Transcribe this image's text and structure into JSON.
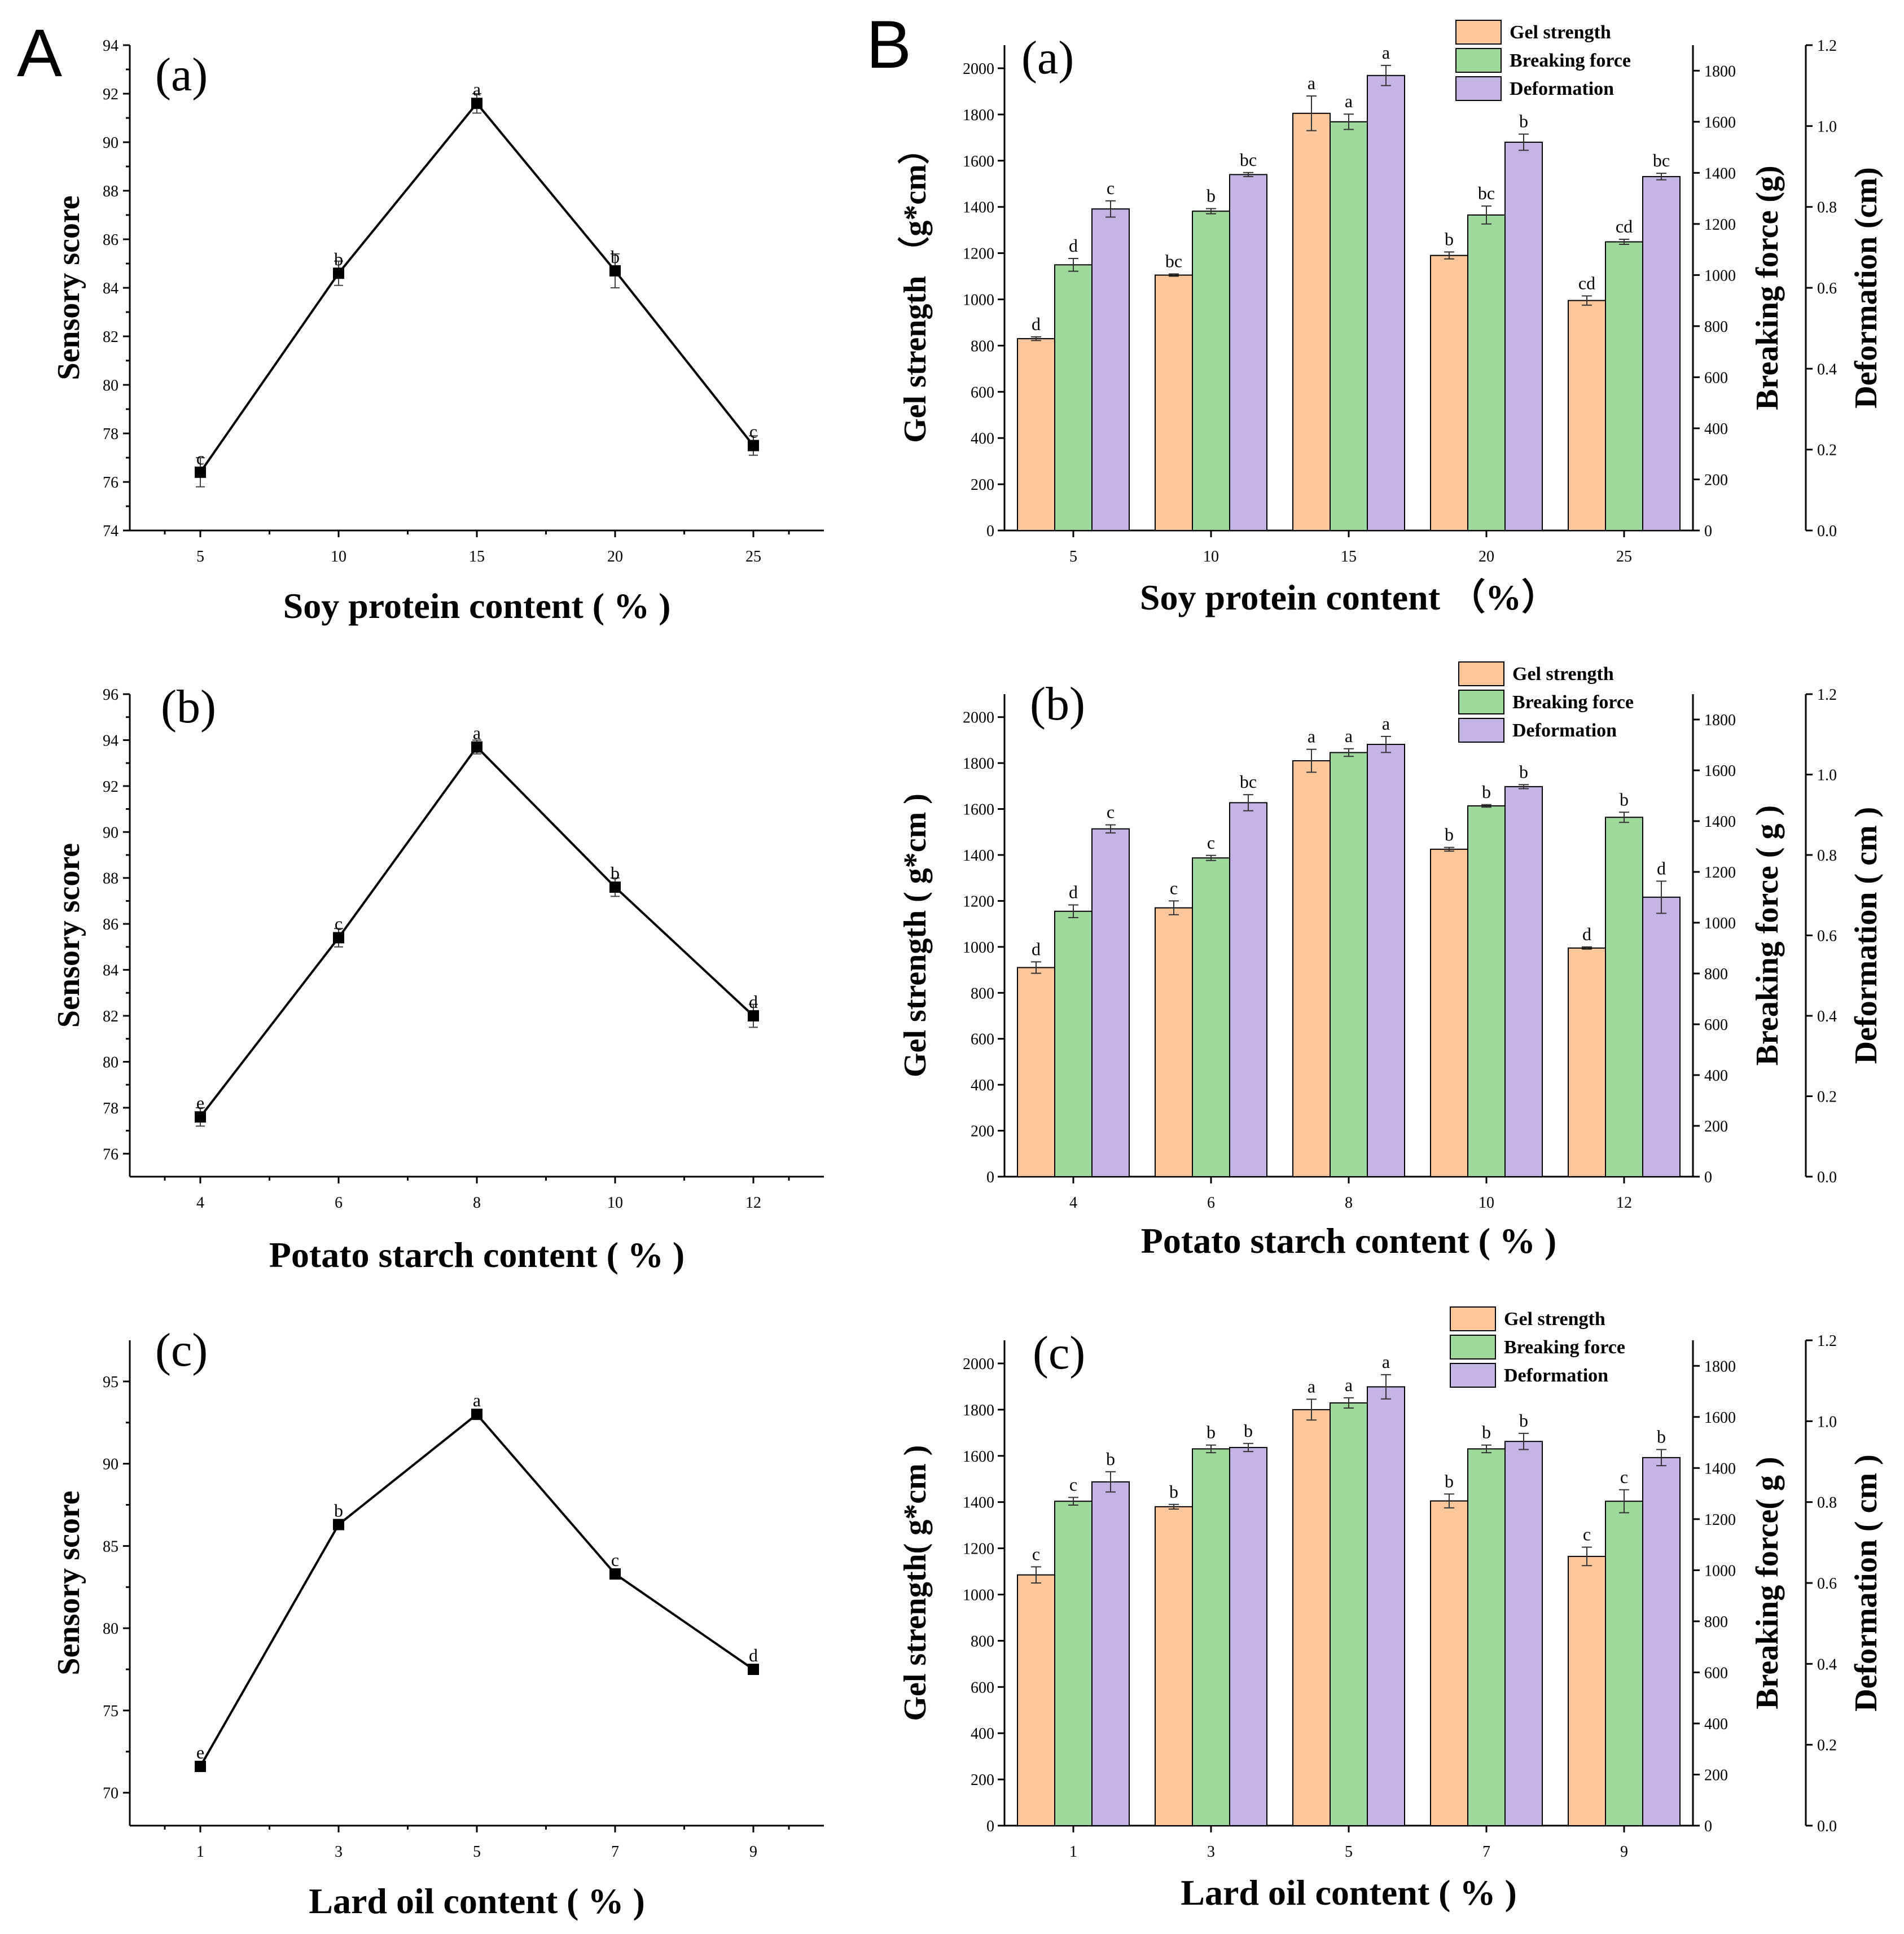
{
  "figure": {
    "label_a": "A",
    "label_b": "B"
  },
  "colors": {
    "gel": "#FDC69B",
    "break": "#9ED89B",
    "deform": "#C4B4E6",
    "stroke": "#000000"
  },
  "chart_data": [
    {
      "id": "A-a",
      "type": "line",
      "panel": "(a)",
      "xlabel": "Soy protein content ( % )",
      "ylabel": "Sensory score",
      "x": [
        5,
        10,
        15,
        20,
        25
      ],
      "values": [
        76.4,
        84.6,
        91.6,
        84.7,
        77.5
      ],
      "errors": [
        0.6,
        0.5,
        0.4,
        0.7,
        0.4
      ],
      "labels": [
        "c",
        "b",
        "a",
        "b",
        "c"
      ],
      "ylim": [
        74,
        94
      ],
      "yticks": [
        74,
        76,
        78,
        80,
        82,
        84,
        86,
        88,
        90,
        92,
        94
      ]
    },
    {
      "id": "A-b",
      "type": "line",
      "panel": "(b)",
      "xlabel": "Potato starch content ( % )",
      "ylabel": "Sensory score",
      "x": [
        4,
        6,
        8,
        10,
        12
      ],
      "values": [
        77.6,
        85.4,
        93.7,
        87.6,
        82.0
      ],
      "errors": [
        0.4,
        0.4,
        0.3,
        0.4,
        0.5
      ],
      "labels": [
        "e",
        "c",
        "a",
        "b",
        "d"
      ],
      "ylim": [
        75,
        96
      ],
      "yticks": [
        76,
        78,
        80,
        82,
        84,
        86,
        88,
        90,
        92,
        94,
        96
      ]
    },
    {
      "id": "A-c",
      "type": "line",
      "panel": "(c)",
      "xlabel": "Lard oil content ( % )",
      "ylabel": "Sensory score",
      "x": [
        1,
        3,
        5,
        7,
        9
      ],
      "values": [
        71.6,
        86.3,
        93.0,
        83.3,
        77.5
      ],
      "errors": [
        0.3,
        0.3,
        0.2,
        0.3,
        0.3
      ],
      "labels": [
        "e",
        "b",
        "a",
        "c",
        "d"
      ],
      "ylim": [
        68,
        97.5
      ],
      "yticks": [
        70,
        75,
        80,
        85,
        90,
        95
      ]
    },
    {
      "id": "B-a",
      "type": "bar",
      "panel": "(a)",
      "xlabel": "Soy protein content （%）",
      "ylabel_left": "Gel strength （g*cm）",
      "ylabel_mid": "Breaking force (g)",
      "ylabel_right": "Deformation (cm)",
      "categories": [
        "5",
        "10",
        "15",
        "20",
        "25"
      ],
      "legend": [
        "Gel strength",
        "Breaking force",
        "Deformation"
      ],
      "ylims": {
        "gel": [
          0,
          2100
        ],
        "break": [
          0,
          1900
        ],
        "deform": [
          0,
          1.2
        ]
      },
      "yticks": {
        "gel": [
          0,
          200,
          400,
          600,
          800,
          1000,
          1200,
          1400,
          1600,
          1800,
          2000
        ],
        "break": [
          0,
          200,
          400,
          600,
          800,
          1000,
          1200,
          1400,
          1600,
          1800
        ],
        "deform": [
          0.0,
          0.2,
          0.4,
          0.6,
          0.8,
          1.0,
          1.2
        ]
      },
      "series": [
        {
          "name": "Gel strength",
          "key": "gel",
          "values": [
            830,
            1105,
            1805,
            1190,
            995
          ],
          "errors": [
            8,
            5,
            75,
            15,
            20
          ],
          "labels": [
            "d",
            "bc",
            "a",
            "b",
            "cd"
          ]
        },
        {
          "name": "Breaking force",
          "key": "break",
          "values": [
            1040,
            1250,
            1600,
            1235,
            1130
          ],
          "errors": [
            25,
            10,
            30,
            35,
            10
          ],
          "labels": [
            "d",
            "b",
            "a",
            "bc",
            "cd"
          ]
        },
        {
          "name": "Deformation",
          "key": "deform",
          "values": [
            0.795,
            0.88,
            1.125,
            0.96,
            0.875
          ],
          "errors": [
            0.02,
            0.005,
            0.025,
            0.02,
            0.008
          ],
          "labels": [
            "c",
            "bc",
            "a",
            "b",
            "bc"
          ]
        }
      ]
    },
    {
      "id": "B-b",
      "type": "bar",
      "panel": "(b)",
      "xlabel": "Potato starch content ( % )",
      "ylabel_left": "Gel strength ( g*cm )",
      "ylabel_mid": "Breaking force ( g )",
      "ylabel_right": "Deformation ( cm )",
      "categories": [
        "4",
        "6",
        "8",
        "10",
        "12"
      ],
      "legend": [
        "Gel strength",
        "Breaking force",
        "Deformation"
      ],
      "ylims": {
        "gel": [
          0,
          2100
        ],
        "break": [
          0,
          1900
        ],
        "deform": [
          0,
          1.2
        ]
      },
      "yticks": {
        "gel": [
          0,
          200,
          400,
          600,
          800,
          1000,
          1200,
          1400,
          1600,
          1800,
          2000
        ],
        "break": [
          0,
          200,
          400,
          600,
          800,
          1000,
          1200,
          1400,
          1600,
          1800
        ],
        "deform": [
          0.0,
          0.2,
          0.4,
          0.6,
          0.8,
          1.0,
          1.2
        ]
      },
      "series": [
        {
          "name": "Gel strength",
          "key": "gel",
          "values": [
            910,
            1170,
            1810,
            1425,
            995
          ],
          "errors": [
            25,
            30,
            50,
            8,
            5
          ],
          "labels": [
            "d",
            "c",
            "a",
            "b",
            "d"
          ]
        },
        {
          "name": "Breaking force",
          "key": "break",
          "values": [
            1045,
            1255,
            1670,
            1460,
            1415
          ],
          "errors": [
            25,
            10,
            15,
            5,
            20
          ],
          "labels": [
            "d",
            "c",
            "a",
            "b",
            "b"
          ]
        },
        {
          "name": "Deformation",
          "key": "deform",
          "values": [
            0.865,
            0.93,
            1.075,
            0.97,
            0.695
          ],
          "errors": [
            0.01,
            0.02,
            0.02,
            0.005,
            0.04
          ],
          "labels": [
            "c",
            "bc",
            "a",
            "b",
            "d"
          ]
        }
      ]
    },
    {
      "id": "B-c",
      "type": "bar",
      "panel": "(c)",
      "xlabel": "Lard oil content ( % )",
      "ylabel_left": "Gel strength( g*cm )",
      "ylabel_mid": "Breaking force( g )",
      "ylabel_right": "Deformation ( cm )",
      "categories": [
        "1",
        "3",
        "5",
        "7",
        "9"
      ],
      "legend": [
        "Gel strength",
        "Breaking force",
        "Deformation"
      ],
      "ylims": {
        "gel": [
          0,
          2100
        ],
        "break": [
          0,
          1900
        ],
        "deform": [
          0,
          1.2
        ]
      },
      "yticks": {
        "gel": [
          0,
          200,
          400,
          600,
          800,
          1000,
          1200,
          1400,
          1600,
          1800,
          2000
        ],
        "break": [
          0,
          200,
          400,
          600,
          800,
          1000,
          1200,
          1400,
          1600,
          1800
        ],
        "deform": [
          0.0,
          0.2,
          0.4,
          0.6,
          0.8,
          1.0,
          1.2
        ]
      },
      "series": [
        {
          "name": "Gel strength",
          "key": "gel",
          "values": [
            1085,
            1380,
            1800,
            1405,
            1165
          ],
          "errors": [
            35,
            10,
            45,
            30,
            40
          ],
          "labels": [
            "c",
            "b",
            "a",
            "b",
            "c"
          ]
        },
        {
          "name": "Breaking force",
          "key": "break",
          "values": [
            1270,
            1475,
            1655,
            1475,
            1270
          ],
          "errors": [
            15,
            15,
            20,
            15,
            45
          ],
          "labels": [
            "c",
            "b",
            "a",
            "b",
            "c"
          ]
        },
        {
          "name": "Deformation",
          "key": "deform",
          "values": [
            0.85,
            0.935,
            1.085,
            0.95,
            0.91
          ],
          "errors": [
            0.025,
            0.01,
            0.03,
            0.02,
            0.02
          ],
          "labels": [
            "b",
            "b",
            "a",
            "b",
            "b"
          ]
        }
      ]
    }
  ]
}
